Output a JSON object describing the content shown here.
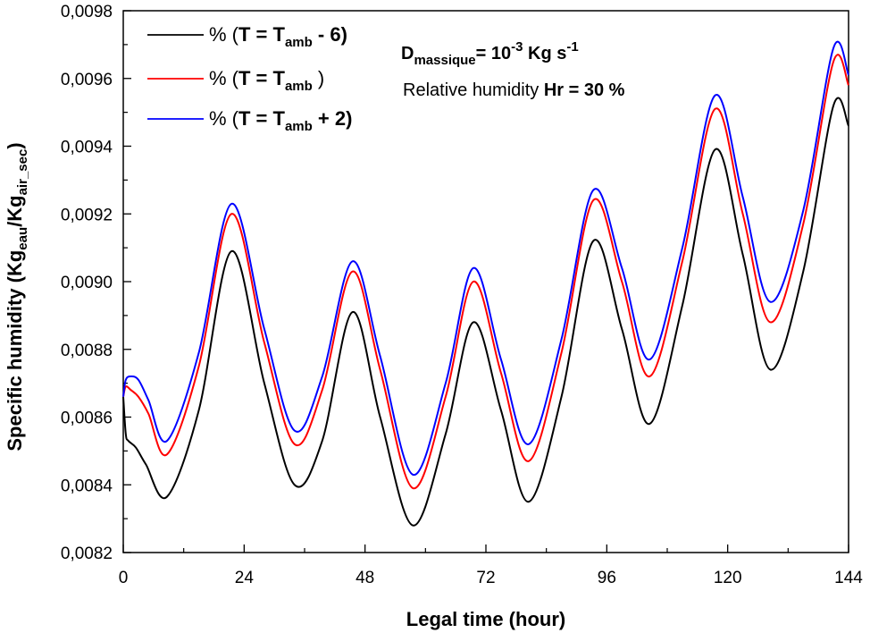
{
  "chart_data": {
    "type": "line",
    "xlabel": "Legal time (hour)",
    "ylabel_parts": {
      "main": "Specific humidity (Kg",
      "sub1": "eau",
      "mid": "/Kg",
      "sub2": "air_sec",
      "end": ")"
    },
    "xlim": [
      0,
      144
    ],
    "ylim": [
      0.0082,
      0.0098
    ],
    "x_ticks": [
      0,
      24,
      48,
      72,
      96,
      120,
      144
    ],
    "x_tick_labels": [
      "0",
      "24",
      "48",
      "72",
      "96",
      "120",
      "144"
    ],
    "y_ticks": [
      0.0082,
      0.0084,
      0.0086,
      0.0088,
      0.009,
      0.0092,
      0.0094,
      0.0096,
      0.0098
    ],
    "y_tick_labels": [
      "0,0082",
      "0,0084",
      "0,0086",
      "0,0088",
      "0,0090",
      "0,0092",
      "0,0094",
      "0,0096",
      "0,0098"
    ],
    "grid": false,
    "legend_position": "top-left",
    "series": [
      {
        "name": "% (T = Tamb - 6)",
        "legend": {
          "pre": "% (",
          "T": "T  =  T",
          "sub": "amb",
          "post": " -  6)"
        },
        "color": "#000000",
        "x": [
          0,
          0.5,
          1,
          2.5,
          4.5,
          8.7,
          15,
          21.5,
          28,
          34,
          39.5,
          45.5,
          51,
          57.5,
          64,
          69.5,
          75,
          80.5,
          87,
          93.3,
          99,
          104.5,
          111,
          117.5,
          123,
          128.5,
          135,
          141,
          144
        ],
        "y": [
          0.00866,
          0.00855,
          0.00853,
          0.00851,
          0.00846,
          0.008365,
          0.00862,
          0.00909,
          0.0087,
          0.0084,
          0.00853,
          0.00891,
          0.0086,
          0.00828,
          0.00855,
          0.00888,
          0.00862,
          0.00835,
          0.00866,
          0.00912,
          0.00886,
          0.00858,
          0.00893,
          0.00939,
          0.00908,
          0.00874,
          0.00903,
          0.00952,
          0.00946
        ]
      },
      {
        "name": "% (T = Tamb)",
        "legend": {
          "pre": "% (",
          "T": "T  =  T",
          "sub": "amb",
          "post": "  )"
        },
        "color": "#ff0000",
        "x": [
          0,
          0.5,
          1.5,
          3,
          5,
          8.7,
          15,
          21.5,
          28,
          34,
          39.5,
          45.5,
          51,
          57.5,
          64,
          69.5,
          75,
          80.5,
          87,
          93.3,
          99,
          104.5,
          111,
          117.5,
          123,
          128.5,
          135,
          141,
          144
        ],
        "y": [
          0.00866,
          0.00869,
          0.00868,
          0.00866,
          0.00861,
          0.00849,
          0.00875,
          0.0092,
          0.00882,
          0.00852,
          0.00868,
          0.00903,
          0.00874,
          0.00839,
          0.00866,
          0.009,
          0.00873,
          0.00847,
          0.00879,
          0.00924,
          0.009,
          0.00872,
          0.00906,
          0.00951,
          0.0092,
          0.00888,
          0.00917,
          0.00965,
          0.00958
        ]
      },
      {
        "name": "% (T = Tamb + 2)",
        "legend": {
          "pre": "% (",
          "T": "T  =  T",
          "sub": "amb",
          "post": " + 2)"
        },
        "color": "#0000ff",
        "x": [
          0,
          0.5,
          1.5,
          3,
          5,
          8.7,
          15,
          21.5,
          28,
          34,
          39.5,
          45.5,
          51,
          57.5,
          64,
          69.5,
          75,
          80.5,
          87,
          93.3,
          99,
          104.5,
          111,
          117.5,
          123,
          128.5,
          135,
          141,
          144
        ],
        "y": [
          0.00866,
          0.00871,
          0.00872,
          0.00871,
          0.00865,
          0.00853,
          0.00879,
          0.00923,
          0.00886,
          0.00856,
          0.00872,
          0.00906,
          0.00878,
          0.00843,
          0.0087,
          0.00904,
          0.00877,
          0.00852,
          0.00883,
          0.00927,
          0.00904,
          0.00877,
          0.0091,
          0.00955,
          0.00925,
          0.00894,
          0.00921,
          0.00969,
          0.00961
        ]
      }
    ],
    "annotations": {
      "flow": {
        "label": "D",
        "sub": "massique",
        "eq": "= 10",
        "exp": "-3",
        "unit": " Kg s",
        "unit_exp": "-1"
      },
      "humidity": {
        "text": "Relative humidity ",
        "bold": "Hr = 30 %"
      }
    }
  }
}
